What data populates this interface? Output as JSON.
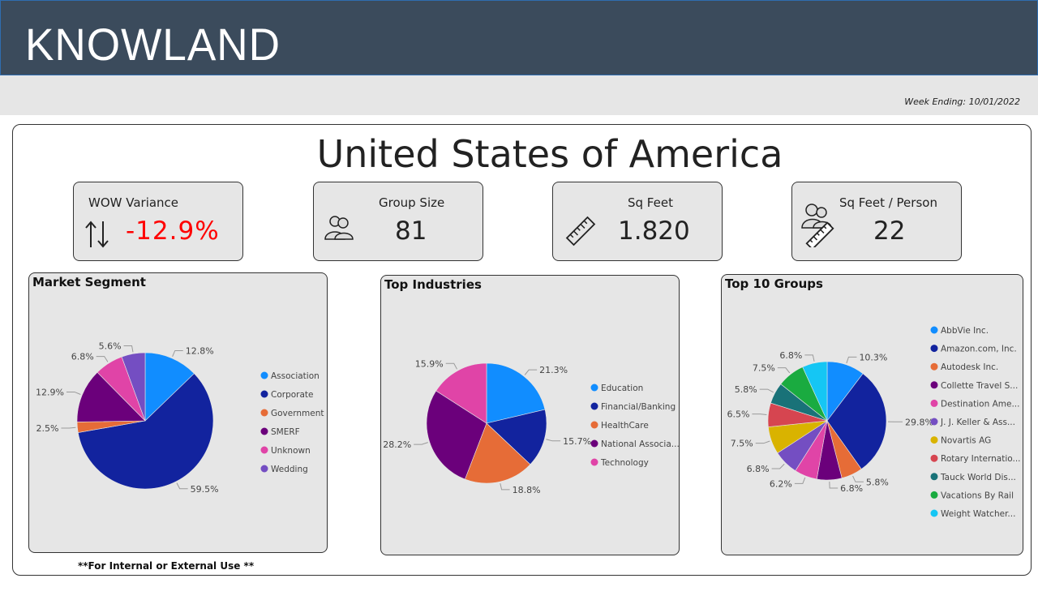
{
  "header": {
    "brand": "KNOWLAND"
  },
  "week_ending": "Week Ending: 10/01/2022",
  "page_title": "United States of America",
  "kpis": [
    {
      "label": "WOW Variance",
      "value": "-12.9%",
      "icon": "up-down-arrows-icon",
      "color": "#ff0000"
    },
    {
      "label": "Group Size",
      "value": "81",
      "icon": "people-group-icon"
    },
    {
      "label": "Sq Feet",
      "value": "1.820",
      "icon": "ruler-icon"
    },
    {
      "label": "Sq Feet / Person",
      "value": "22",
      "icon": "person-ruler-icon"
    }
  ],
  "footer_note": "**For Internal or External Use **",
  "chart_data": [
    {
      "type": "pie",
      "title": "Market Segment",
      "categories": [
        "Association",
        "Corporate",
        "Government",
        "SMERF",
        "Unknown",
        "Wedding"
      ],
      "values": [
        12.8,
        59.5,
        2.5,
        12.9,
        6.8,
        5.6
      ],
      "labels": [
        "12.8%",
        "59.5%",
        "2.5%",
        "12.9%",
        "6.8%",
        "5.6%"
      ],
      "colors": [
        "#118dff",
        "#12239e",
        "#e66c37",
        "#6b007b",
        "#e044a7",
        "#744ec2"
      ],
      "legend": "right"
    },
    {
      "type": "pie",
      "title": "Top Industries",
      "categories": [
        "Education",
        "Financial/Banking",
        "HealthCare",
        "National Associa...",
        "Technology"
      ],
      "values": [
        21.3,
        15.7,
        18.8,
        28.2,
        15.9
      ],
      "labels": [
        "21.3%",
        "15.7%",
        "18.8%",
        "28.2%",
        "15.9%"
      ],
      "colors": [
        "#118dff",
        "#12239e",
        "#e66c37",
        "#6b007b",
        "#e044a7"
      ],
      "legend": "right"
    },
    {
      "type": "pie",
      "title": "Top 10 Groups",
      "categories": [
        "AbbVie Inc.",
        "Amazon.com, Inc.",
        "Autodesk Inc.",
        "Collette Travel S...",
        "Destination Ame...",
        "J. J. Keller & Ass...",
        "Novartis AG",
        "Rotary Internatio...",
        "Tauck World Dis...",
        "Vacations By Rail",
        "Weight Watcher..."
      ],
      "values": [
        10.3,
        29.8,
        5.8,
        6.8,
        6.2,
        6.8,
        7.5,
        6.5,
        5.8,
        7.5,
        6.8
      ],
      "labels": [
        "10.3%",
        "29.8%",
        "5.8%",
        "6.8%",
        "6.2%",
        "6.8%",
        "7.5%",
        "6.5%",
        "5.8%",
        "7.5%",
        "6.8%"
      ],
      "colors": [
        "#118dff",
        "#12239e",
        "#e66c37",
        "#6b007b",
        "#e044a7",
        "#744ec2",
        "#d9b300",
        "#d64550",
        "#197278",
        "#1aab40",
        "#15c6f4"
      ],
      "legend": "right"
    }
  ]
}
